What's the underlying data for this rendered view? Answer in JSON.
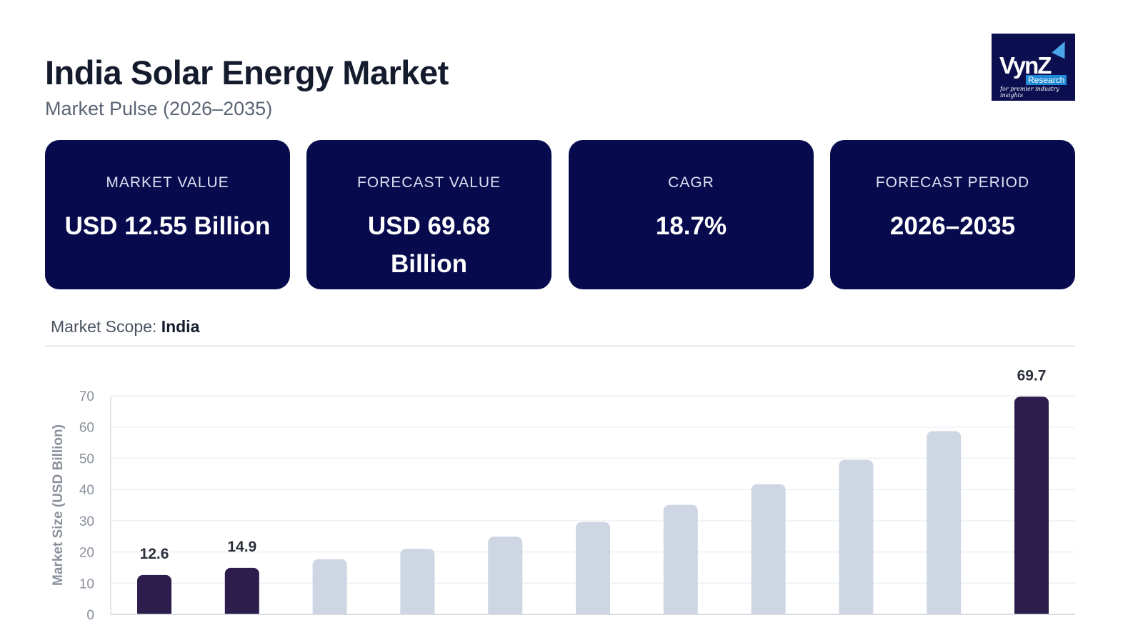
{
  "header": {
    "title": "India Solar Energy Market",
    "subtitle": "Market Pulse (2026–2035)"
  },
  "logo": {
    "text": "VynZ",
    "sub": "Research",
    "tagline": "for premier industry insights"
  },
  "cards": [
    {
      "label": "MARKET VALUE",
      "value": "USD 12.55 Billion"
    },
    {
      "label": "FORECAST VALUE",
      "value": "USD 69.68 Billion"
    },
    {
      "label": "CAGR",
      "value": "18.7%"
    },
    {
      "label": "FORECAST PERIOD",
      "value": "2026–2035"
    }
  ],
  "scope": {
    "label": "Market Scope:",
    "value": "India"
  },
  "colors": {
    "card_bg": "#070b4d",
    "highlight_bar": "#2c1d4d",
    "bar": "#cdd6e2"
  },
  "chart_data": {
    "type": "bar",
    "ylabel": "Market Size (USD Billion)",
    "ylim": [
      0,
      70
    ],
    "yticks": [
      0,
      10,
      20,
      30,
      40,
      50,
      60,
      70
    ],
    "grid": true,
    "values": [
      12.6,
      14.9,
      17.7,
      21.0,
      24.9,
      29.6,
      35.1,
      41.7,
      49.5,
      58.7,
      69.7
    ],
    "highlighted": [
      0,
      1,
      10
    ],
    "data_labels": {
      "0": "12.6",
      "1": "14.9",
      "10": "69.7"
    }
  }
}
